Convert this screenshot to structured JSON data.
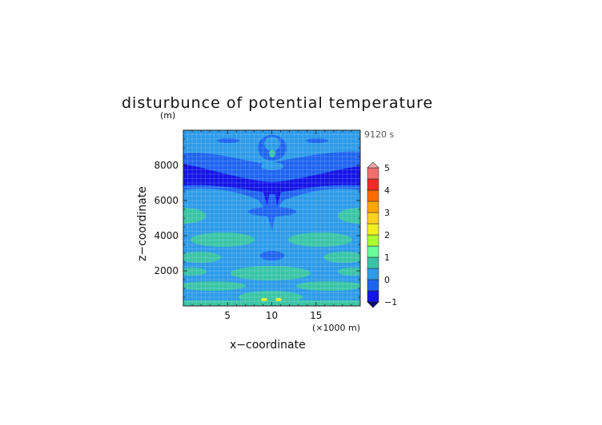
{
  "chart_data": {
    "type": "heatmap",
    "title": "disturbunce of potential temperature",
    "ylabel": "z−coordinate",
    "yunit": "(m)",
    "xlabel": "x−coordinate",
    "xunit": "(×1000 m)",
    "time_label": "9120 s",
    "xlim": [
      0,
      20
    ],
    "ylim": [
      0,
      10000
    ],
    "xticks": [
      5,
      10,
      15
    ],
    "yticks": [
      2000,
      4000,
      6000,
      8000
    ],
    "grid": true,
    "colorbar": {
      "levels": [
        -1,
        -0.5,
        0,
        0.5,
        1,
        1.5,
        2,
        2.5,
        3,
        3.5,
        4,
        4.5,
        5
      ],
      "labels": [
        "−1",
        "0",
        "1",
        "2",
        "3",
        "4",
        "5"
      ],
      "label_values": [
        -1,
        0,
        1,
        2,
        3,
        4,
        5
      ],
      "colors": [
        "#1414e6",
        "#1e64f0",
        "#2c9be8",
        "#39c4a6",
        "#66ff99",
        "#adff2f",
        "#f0f020",
        "#ffd21e",
        "#ffa500",
        "#ff6a00",
        "#f02828",
        "#f06e6e",
        "#f4a9a9"
      ]
    },
    "regions": [
      {
        "name": "upper-stripe",
        "value": -0.7,
        "z_range": [
          6900,
          8900
        ],
        "shape": "band"
      },
      {
        "name": "column",
        "value": -0.6,
        "x": 10,
        "z_range": [
          5800,
          7200
        ],
        "shape": "jet"
      },
      {
        "name": "bubble",
        "value": 0.6,
        "x": 10.9,
        "z": 400,
        "shape": "dot"
      }
    ]
  }
}
